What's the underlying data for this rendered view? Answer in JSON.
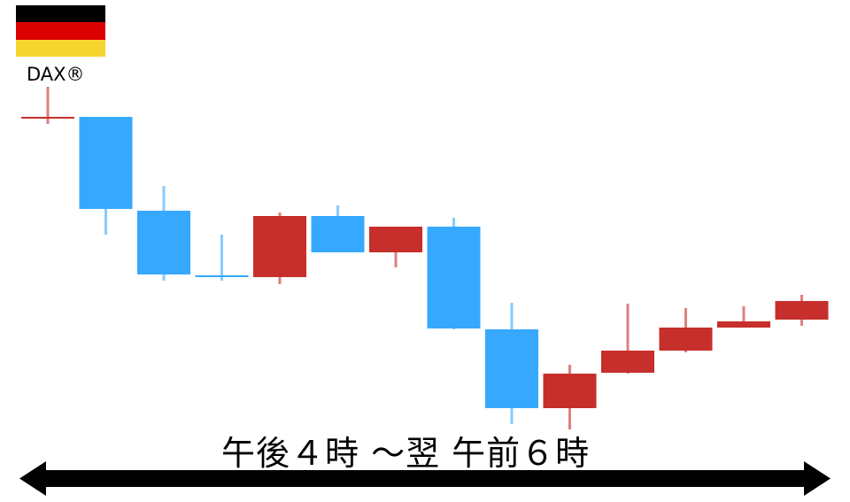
{
  "flag": {
    "name": "germany-flag",
    "colors": [
      "#000000",
      "#DD0000",
      "#F6D62E"
    ]
  },
  "index_label": "DAX®",
  "period_label": "午後４時 ～翌 午前６時",
  "colors": {
    "up": "#C62F2B",
    "down": "#36A9FF",
    "arrow": "#000000"
  },
  "chart_data": {
    "type": "candlestick",
    "title": "",
    "xlabel": "午後４時 ～翌 午前６時",
    "ylabel": "",
    "axes_shown": false,
    "grid": false,
    "note_units": "relative price level (no axis printed)",
    "candles": [
      {
        "open": 367,
        "close": 367,
        "high": 402,
        "low": 360,
        "color": "up"
      },
      {
        "open": 368,
        "close": 264,
        "high": 368,
        "low": 235,
        "color": "down"
      },
      {
        "open": 262,
        "close": 190,
        "high": 290,
        "low": 183,
        "color": "down"
      },
      {
        "open": 188,
        "close": 188,
        "high": 235,
        "low": 183,
        "color": "down"
      },
      {
        "open": 187,
        "close": 256,
        "high": 260,
        "low": 179,
        "color": "up"
      },
      {
        "open": 256,
        "close": 215,
        "high": 268,
        "low": 215,
        "color": "down"
      },
      {
        "open": 215,
        "close": 244,
        "high": 244,
        "low": 198,
        "color": "up"
      },
      {
        "open": 244,
        "close": 129,
        "high": 254,
        "low": 128,
        "color": "down"
      },
      {
        "open": 128,
        "close": 39,
        "high": 158,
        "low": 21,
        "color": "down"
      },
      {
        "open": 39,
        "close": 78,
        "high": 88,
        "low": 15,
        "color": "up"
      },
      {
        "open": 79,
        "close": 104,
        "high": 157,
        "low": 78,
        "color": "up"
      },
      {
        "open": 104,
        "close": 130,
        "high": 152,
        "low": 102,
        "color": "up"
      },
      {
        "open": 130,
        "close": 137,
        "high": 154,
        "low": 130,
        "color": "up"
      },
      {
        "open": 139,
        "close": 160,
        "high": 167,
        "low": 132,
        "color": "up"
      }
    ]
  }
}
